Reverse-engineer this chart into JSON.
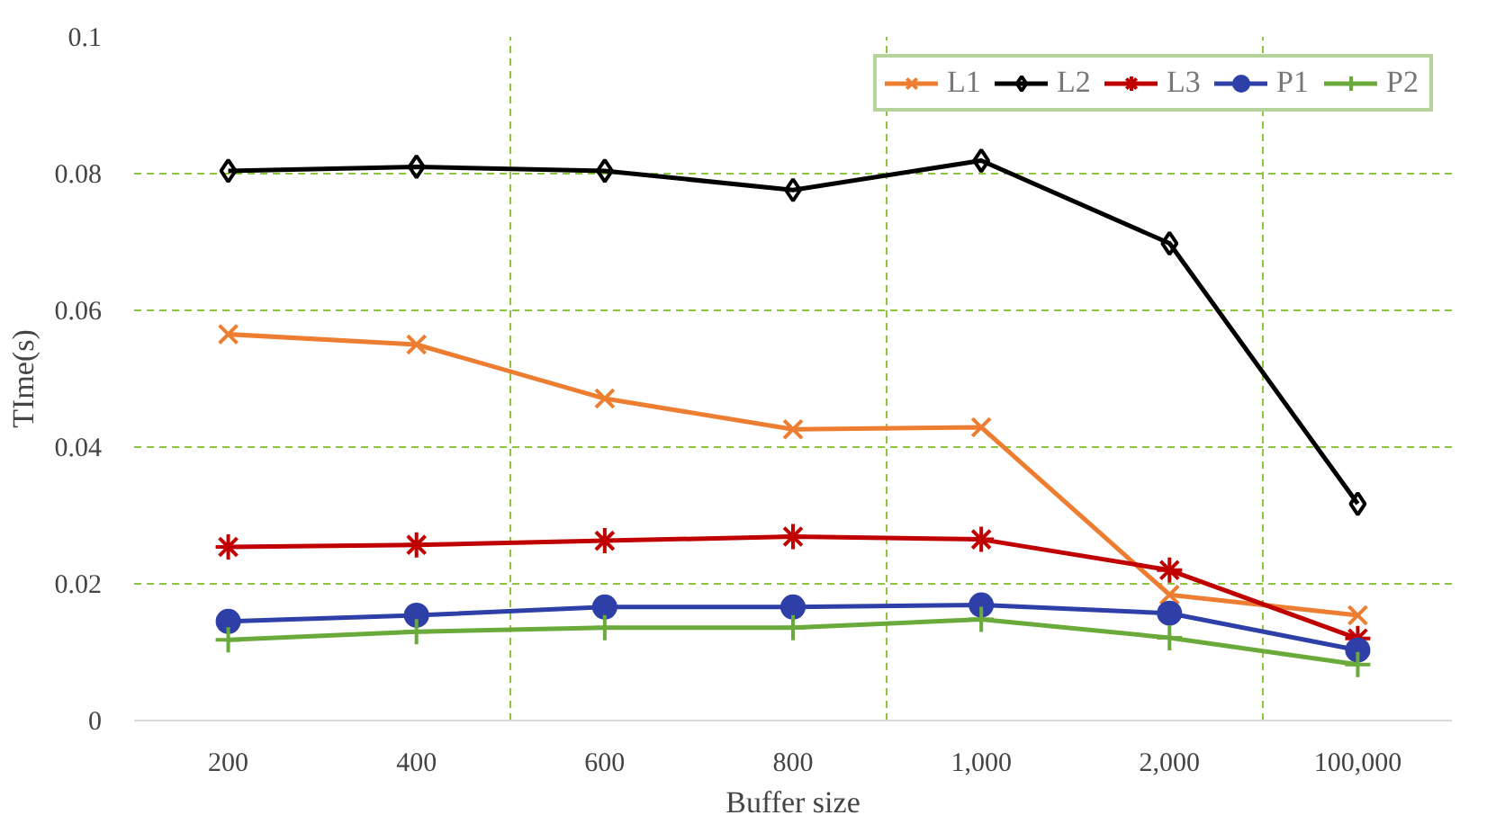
{
  "chart_data": {
    "type": "line",
    "xlabel": "Buffer size",
    "ylabel": "TIme(s)",
    "categories": [
      "200",
      "400",
      "600",
      "800",
      "1,000",
      "2,000",
      "100,000"
    ],
    "series": [
      {
        "name": "L1",
        "color": "#ed7d31",
        "marker": "x",
        "values": [
          0.0565,
          0.055,
          0.0471,
          0.0426,
          0.0429,
          0.0184,
          0.0154
        ]
      },
      {
        "name": "L2",
        "color": "#000000",
        "marker": "diamond",
        "values": [
          0.0804,
          0.081,
          0.0804,
          0.0776,
          0.0819,
          0.0698,
          0.0317
        ]
      },
      {
        "name": "L3",
        "color": "#c00000",
        "marker": "cross",
        "values": [
          0.0254,
          0.0257,
          0.0263,
          0.0269,
          0.0265,
          0.022,
          0.012
        ]
      },
      {
        "name": "P1",
        "color": "#2e3fa8",
        "marker": "circle",
        "values": [
          0.0145,
          0.0154,
          0.0166,
          0.0166,
          0.0169,
          0.0157,
          0.0103
        ]
      },
      {
        "name": "P2",
        "color": "#6aaa3a",
        "marker": "cross",
        "values": [
          0.0118,
          0.013,
          0.0136,
          0.0136,
          0.0148,
          0.0121,
          0.0082
        ]
      }
    ],
    "ylim": [
      0,
      0.1
    ],
    "yticks": [
      {
        "value": 0,
        "label": "0"
      },
      0.02,
      0.04,
      0.06,
      0.08,
      0.1
    ],
    "grid": true,
    "legend": "top right",
    "line_style": "solid"
  }
}
